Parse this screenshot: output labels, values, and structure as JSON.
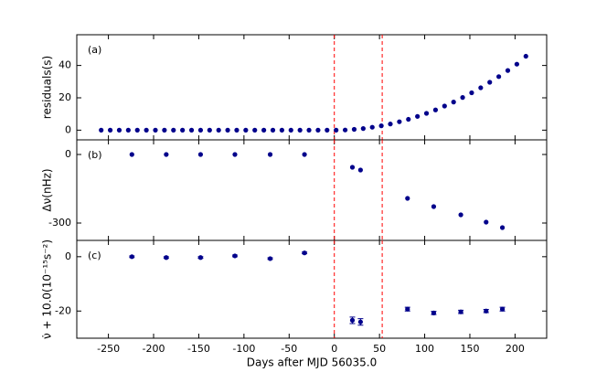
{
  "chart_data": [
    {
      "type": "scatter",
      "panel_label": "(a)",
      "ylabel": "residuals(s)",
      "color": "#00008b",
      "x": [
        -258,
        -248,
        -238,
        -228,
        -218,
        -208,
        -198,
        -188,
        -178,
        -168,
        -158,
        -148,
        -138,
        -128,
        -118,
        -108,
        -98,
        -88,
        -78,
        -68,
        -58,
        -48,
        -38,
        -28,
        -18,
        -8,
        2,
        12,
        22,
        32,
        42,
        52,
        62,
        72,
        82,
        92,
        102,
        112,
        122,
        132,
        142,
        152,
        162,
        172,
        182,
        192,
        202,
        212
      ],
      "values": [
        0,
        0,
        0,
        0,
        0,
        0,
        0,
        0,
        0,
        0,
        0,
        0,
        0,
        0,
        0,
        0,
        0,
        0,
        0,
        0,
        0,
        0,
        0,
        0,
        0,
        0,
        0.0,
        0.1,
        0.5,
        1.0,
        1.8,
        2.7,
        3.8,
        5.2,
        6.7,
        8.5,
        10.4,
        12.5,
        14.9,
        17.4,
        20.2,
        23.1,
        26.2,
        29.6,
        33.1,
        36.9,
        40.8,
        45.7
      ],
      "xlim": [
        -285,
        235
      ],
      "xticks": [
        -250,
        -200,
        -150,
        -100,
        -50,
        0,
        50,
        100,
        150,
        200
      ],
      "show_xtick_labels": false,
      "ylim": [
        -6,
        59
      ],
      "yticks": [
        0,
        20,
        40
      ],
      "vlines": [
        0,
        53
      ],
      "vline_color": "#ff0000"
    },
    {
      "type": "scatter",
      "panel_label": "(b)",
      "ylabel": "Δν(nHz)",
      "color": "#00008b",
      "x": [
        -224,
        -186,
        -148,
        -110,
        -71,
        -33,
        20,
        29,
        81,
        110,
        140,
        168,
        186
      ],
      "values": [
        0,
        0,
        0,
        0,
        0,
        0,
        -56,
        -68,
        -192,
        -228,
        -264,
        -296,
        -320
      ],
      "xlim": [
        -285,
        235
      ],
      "xticks": [
        -250,
        -200,
        -150,
        -100,
        -50,
        0,
        50,
        100,
        150,
        200
      ],
      "show_xtick_labels": false,
      "ylim": [
        -376,
        64
      ],
      "yticks": [
        0,
        -300
      ],
      "vlines": [
        0,
        53
      ],
      "vline_color": "#ff0000"
    },
    {
      "type": "errorbar",
      "panel_label": "(c)",
      "ylabel": "ν̇ + 10.0(10⁻¹⁵s⁻²)",
      "xlabel": "Days after MJD 56035.0",
      "color": "#00008b",
      "x": [
        -224,
        -186,
        -148,
        -110,
        -71,
        -33,
        20,
        29,
        81,
        110,
        140,
        168,
        186
      ],
      "values": [
        0,
        -0.3,
        -0.3,
        0.3,
        -0.7,
        1.4,
        -23.4,
        -24,
        -19.3,
        -20.7,
        -20.3,
        -20,
        -19.3
      ],
      "errors": [
        0.3,
        0.3,
        0.3,
        0.3,
        0.3,
        0.3,
        1.2,
        1.2,
        0.7,
        0.6,
        0.6,
        0.6,
        0.7
      ],
      "xlim": [
        -285,
        235
      ],
      "xticks": [
        -250,
        -200,
        -150,
        -100,
        -50,
        0,
        50,
        100,
        150,
        200
      ],
      "show_xtick_labels": true,
      "ylim": [
        -30,
        6
      ],
      "yticks": [
        0,
        -20
      ],
      "vlines": [
        0,
        53
      ],
      "vline_color": "#ff0000"
    }
  ]
}
